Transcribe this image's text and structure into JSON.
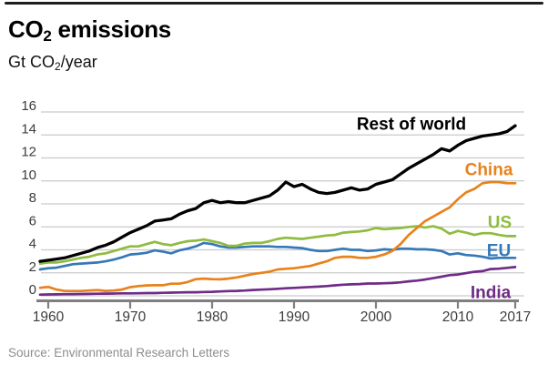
{
  "header": {
    "title_pre": "CO",
    "title_sub": "2",
    "title_post": " emissions",
    "unit_pre": "Gt CO",
    "unit_sub": "2",
    "unit_post": "/year"
  },
  "footer": {
    "source": "Source: Environmental Research Letters"
  },
  "colors": {
    "grid": "#cacaca",
    "axis": "#7f7f7f",
    "tick_label": "#3d3d3d",
    "top_rule": "#1e1e1e"
  },
  "chart_data": {
    "type": "line",
    "title": "CO₂ emissions",
    "ylabel": "Gt CO₂/year",
    "xlabel": "",
    "grid": true,
    "legend_position": "inline-labels-right",
    "ylim": [
      0,
      16
    ],
    "yticks": [
      0,
      2,
      4,
      6,
      8,
      10,
      12,
      14,
      16
    ],
    "xticks": [
      1960,
      1970,
      1980,
      1990,
      2000,
      2010,
      2017
    ],
    "x": [
      1959,
      1960,
      1961,
      1962,
      1963,
      1964,
      1965,
      1966,
      1967,
      1968,
      1969,
      1970,
      1971,
      1972,
      1973,
      1974,
      1975,
      1976,
      1977,
      1978,
      1979,
      1980,
      1981,
      1982,
      1983,
      1984,
      1985,
      1986,
      1987,
      1988,
      1989,
      1990,
      1991,
      1992,
      1993,
      1994,
      1995,
      1996,
      1997,
      1998,
      1999,
      2000,
      2001,
      2002,
      2003,
      2004,
      2005,
      2006,
      2007,
      2008,
      2009,
      2010,
      2011,
      2012,
      2013,
      2014,
      2015,
      2016,
      2017
    ],
    "series": [
      {
        "name": "Rest of world",
        "color": "#000000",
        "values": [
          3.0,
          3.1,
          3.2,
          3.3,
          3.5,
          3.7,
          3.9,
          4.2,
          4.4,
          4.7,
          5.1,
          5.5,
          5.8,
          6.1,
          6.5,
          6.6,
          6.7,
          7.1,
          7.4,
          7.6,
          8.1,
          8.3,
          8.1,
          8.2,
          8.1,
          8.1,
          8.3,
          8.5,
          8.7,
          9.2,
          9.9,
          9.5,
          9.7,
          9.3,
          9.0,
          8.9,
          9.0,
          9.2,
          9.4,
          9.2,
          9.3,
          9.7,
          9.9,
          10.1,
          10.6,
          11.1,
          11.5,
          11.9,
          12.3,
          12.8,
          12.6,
          13.1,
          13.5,
          13.7,
          13.9,
          14.0,
          14.1,
          14.3,
          14.8
        ]
      },
      {
        "name": "China",
        "color": "#e8821c",
        "values": [
          0.7,
          0.78,
          0.55,
          0.42,
          0.42,
          0.42,
          0.46,
          0.5,
          0.43,
          0.46,
          0.55,
          0.75,
          0.85,
          0.9,
          0.92,
          0.92,
          1.05,
          1.05,
          1.2,
          1.45,
          1.5,
          1.45,
          1.43,
          1.5,
          1.6,
          1.75,
          1.9,
          2.0,
          2.1,
          2.3,
          2.35,
          2.4,
          2.5,
          2.6,
          2.8,
          3.0,
          3.3,
          3.4,
          3.4,
          3.3,
          3.3,
          3.4,
          3.6,
          3.9,
          4.5,
          5.3,
          5.9,
          6.5,
          6.9,
          7.3,
          7.7,
          8.4,
          9.0,
          9.3,
          9.8,
          9.9,
          9.9,
          9.8,
          9.8
        ]
      },
      {
        "name": "US",
        "color": "#8fbc3f",
        "values": [
          2.8,
          2.9,
          2.9,
          3.0,
          3.15,
          3.3,
          3.4,
          3.6,
          3.7,
          3.9,
          4.1,
          4.3,
          4.3,
          4.5,
          4.7,
          4.5,
          4.4,
          4.6,
          4.75,
          4.8,
          4.9,
          4.75,
          4.6,
          4.35,
          4.35,
          4.55,
          4.6,
          4.6,
          4.75,
          4.95,
          5.05,
          5.0,
          4.95,
          5.05,
          5.15,
          5.25,
          5.3,
          5.5,
          5.55,
          5.6,
          5.7,
          5.9,
          5.8,
          5.85,
          5.9,
          6.0,
          6.05,
          5.95,
          6.05,
          5.85,
          5.4,
          5.65,
          5.5,
          5.3,
          5.45,
          5.45,
          5.3,
          5.2,
          5.2
        ]
      },
      {
        "name": "EU",
        "color": "#3579b8",
        "values": [
          2.3,
          2.4,
          2.45,
          2.6,
          2.75,
          2.8,
          2.85,
          2.9,
          3.0,
          3.15,
          3.35,
          3.6,
          3.65,
          3.75,
          3.95,
          3.85,
          3.7,
          3.95,
          4.1,
          4.3,
          4.6,
          4.5,
          4.3,
          4.2,
          4.2,
          4.25,
          4.3,
          4.3,
          4.3,
          4.25,
          4.25,
          4.2,
          4.15,
          4.0,
          3.9,
          3.9,
          4.0,
          4.1,
          4.0,
          4.0,
          3.9,
          3.95,
          4.05,
          4.0,
          4.1,
          4.1,
          4.05,
          4.05,
          4.0,
          3.9,
          3.6,
          3.7,
          3.55,
          3.5,
          3.4,
          3.25,
          3.3,
          3.3,
          3.3
        ]
      },
      {
        "name": "India",
        "color": "#6f2c87",
        "values": [
          0.1,
          0.12,
          0.13,
          0.14,
          0.15,
          0.16,
          0.17,
          0.18,
          0.19,
          0.2,
          0.21,
          0.21,
          0.22,
          0.24,
          0.24,
          0.26,
          0.28,
          0.29,
          0.31,
          0.31,
          0.33,
          0.35,
          0.38,
          0.41,
          0.43,
          0.46,
          0.51,
          0.54,
          0.57,
          0.61,
          0.66,
          0.69,
          0.73,
          0.77,
          0.8,
          0.85,
          0.91,
          0.97,
          1.0,
          1.02,
          1.07,
          1.07,
          1.09,
          1.12,
          1.17,
          1.26,
          1.32,
          1.42,
          1.54,
          1.66,
          1.8,
          1.85,
          1.97,
          2.09,
          2.15,
          2.33,
          2.36,
          2.43,
          2.5
        ]
      }
    ],
    "source": "Source: Environmental Research Letters"
  }
}
